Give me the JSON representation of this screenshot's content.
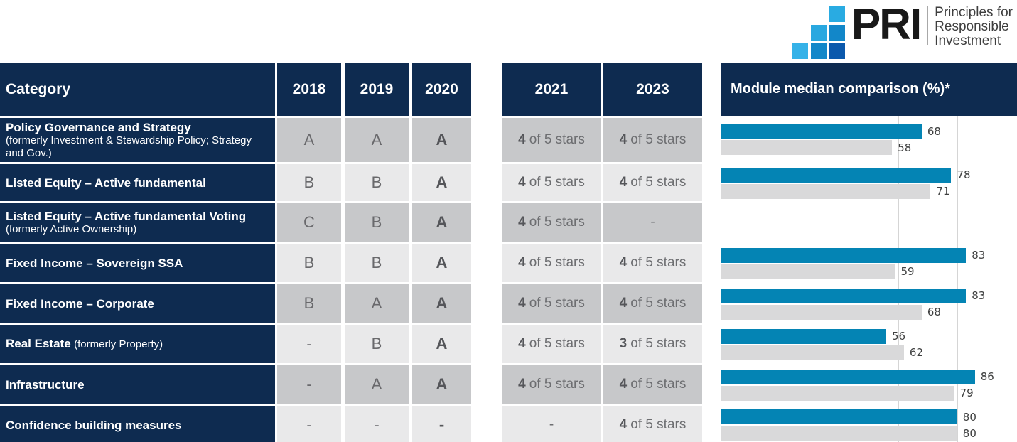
{
  "logo": {
    "acronym": "PRI",
    "tagline": [
      "Principles for",
      "Responsible",
      "Investment"
    ],
    "colors": {
      "light_blue": "#29ABE2",
      "mid_blue": "#1287C9",
      "dark_blue": "#0B59AC"
    }
  },
  "colors": {
    "navy": "#0E2B50",
    "bar_blue": "#0484B4",
    "bar_gray": "#D9D9DA",
    "cell_dark_gray": "#C7C8CA",
    "cell_light_gray": "#E9E9EA"
  },
  "header": {
    "category": "Category",
    "y2018": "2018",
    "y2019": "2019",
    "y2020": "2020",
    "y2021": "2021",
    "y2023": "2023",
    "chart": "Module median comparison (%)*"
  },
  "table": {
    "rows": [
      {
        "name": "Policy Governance and Strategy",
        "note": "(formerly Investment & Stewardship Policy; Strategy and Gov.)",
        "grades": [
          "A",
          "A",
          "A"
        ],
        "stars_2021": {
          "num": "4",
          "rest": "of 5 stars"
        },
        "stars_2023": {
          "num": "4",
          "rest": "of 5 stars"
        }
      },
      {
        "name": "Listed Equity – Active fundamental",
        "grades": [
          "B",
          "B",
          "A"
        ],
        "stars_2021": {
          "num": "4",
          "rest": "of 5 stars"
        },
        "stars_2023": {
          "num": "4",
          "rest": "of 5 stars"
        }
      },
      {
        "name": "Listed Equity – Active fundamental Voting",
        "note": "(formerly Active Ownership)",
        "grades": [
          "C",
          "B",
          "A"
        ],
        "stars_2021": {
          "num": "4",
          "rest": "of 5 stars"
        },
        "stars_2023": {
          "num": "",
          "rest": "-"
        }
      },
      {
        "name": "Fixed Income – Sovereign SSA",
        "grades": [
          "B",
          "B",
          "A"
        ],
        "stars_2021": {
          "num": "4",
          "rest": "of 5 stars"
        },
        "stars_2023": {
          "num": "4",
          "rest": "of 5 stars"
        }
      },
      {
        "name": "Fixed Income – Corporate",
        "grades": [
          "B",
          "A",
          "A"
        ],
        "stars_2021": {
          "num": "4",
          "rest": "of 5 stars"
        },
        "stars_2023": {
          "num": "4",
          "rest": "of 5 stars"
        }
      },
      {
        "name": "Real Estate",
        "note": "(formerly Property)",
        "grades": [
          "-",
          "B",
          "A"
        ],
        "stars_2021": {
          "num": "4",
          "rest": "of 5 stars"
        },
        "stars_2023": {
          "num": "3",
          "rest": "of 5 stars"
        }
      },
      {
        "name": "Infrastructure",
        "grades": [
          "-",
          "A",
          "A"
        ],
        "stars_2021": {
          "num": "4",
          "rest": "of 5 stars"
        },
        "stars_2023": {
          "num": "4",
          "rest": "of 5 stars"
        }
      },
      {
        "name": "Confidence building measures",
        "grades": [
          "-",
          "-",
          "-"
        ],
        "stars_2021": {
          "num": "",
          "rest": "-"
        },
        "stars_2023": {
          "num": "4",
          "rest": "of 5 stars"
        }
      }
    ]
  },
  "chart_data": {
    "type": "bar",
    "orientation": "horizontal",
    "title": "Module median comparison (%)*",
    "categories": [
      "Policy Governance and Strategy",
      "Listed Equity – Active fundamental",
      "Listed Equity – Active fundamental Voting",
      "Fixed Income – Sovereign SSA",
      "Fixed Income – Corporate",
      "Real Estate",
      "Infrastructure",
      "Confidence building measures"
    ],
    "series": [
      {
        "name": "blue",
        "color": "#0484B4",
        "values": [
          68,
          78,
          null,
          83,
          83,
          56,
          86,
          80
        ]
      },
      {
        "name": "gray",
        "color": "#D9D9DA",
        "values": [
          58,
          71,
          null,
          59,
          68,
          62,
          79,
          80
        ]
      }
    ],
    "xlim": [
      0,
      100
    ],
    "gridlines": [
      0,
      20,
      40,
      60,
      80,
      100
    ],
    "legend": false
  }
}
